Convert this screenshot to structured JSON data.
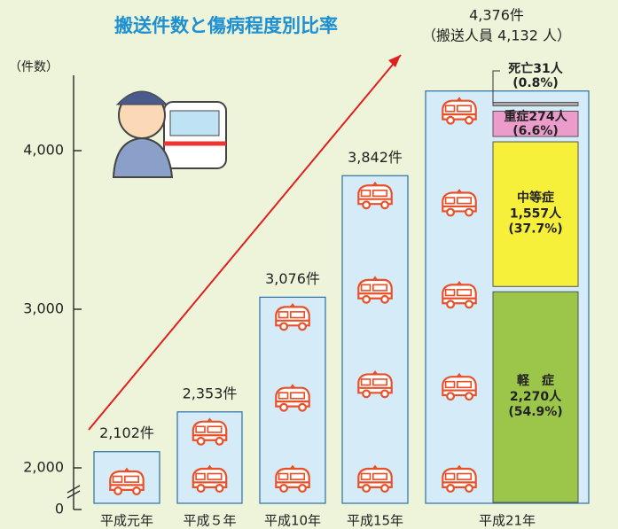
{
  "chart_data": {
    "type": "bar",
    "title": "搬送件数と傷病程度別比率",
    "y_label": "（件数）",
    "categories": [
      "平成元年",
      "平成５年",
      "平成10年",
      "平成15年",
      "平成21年"
    ],
    "values": [
      2102,
      2353,
      3076,
      3842,
      4376
    ],
    "value_labels": [
      "2,102件",
      "2,353件",
      "3,076件",
      "3,842件",
      "4,376件"
    ],
    "color": "#d5ecf8",
    "ylim": [
      0,
      4450
    ],
    "yticks": [
      0,
      {
        "value": 2000,
        "label": "2,000"
      },
      {
        "value": 3000,
        "label": "3,000"
      },
      {
        "value": 4000,
        "label": "4,000"
      }
    ],
    "annotation": "（搬送人員 4,132 人）",
    "breakdown": [
      {
        "name": "軽　症",
        "value_label": "2,270人",
        "value": 2270,
        "percent": 54.9,
        "percent_label": "(54.9%)",
        "color": "#9cc64a"
      },
      {
        "name": "中等症",
        "value_label": "1,557人",
        "value": 1557,
        "percent": 37.7,
        "percent_label": "(37.7%)",
        "color": "#f6f03a"
      },
      {
        "name": "重症",
        "value_label": "274人",
        "value": 274,
        "percent": 6.6,
        "percent_label": "(6.6%)",
        "color": "#ec9ccb"
      },
      {
        "name": "死亡",
        "value_label": "31人",
        "value": 31,
        "percent": 0.8,
        "percent_label": "(0.8%)",
        "color": "#a8a8a8"
      }
    ]
  }
}
